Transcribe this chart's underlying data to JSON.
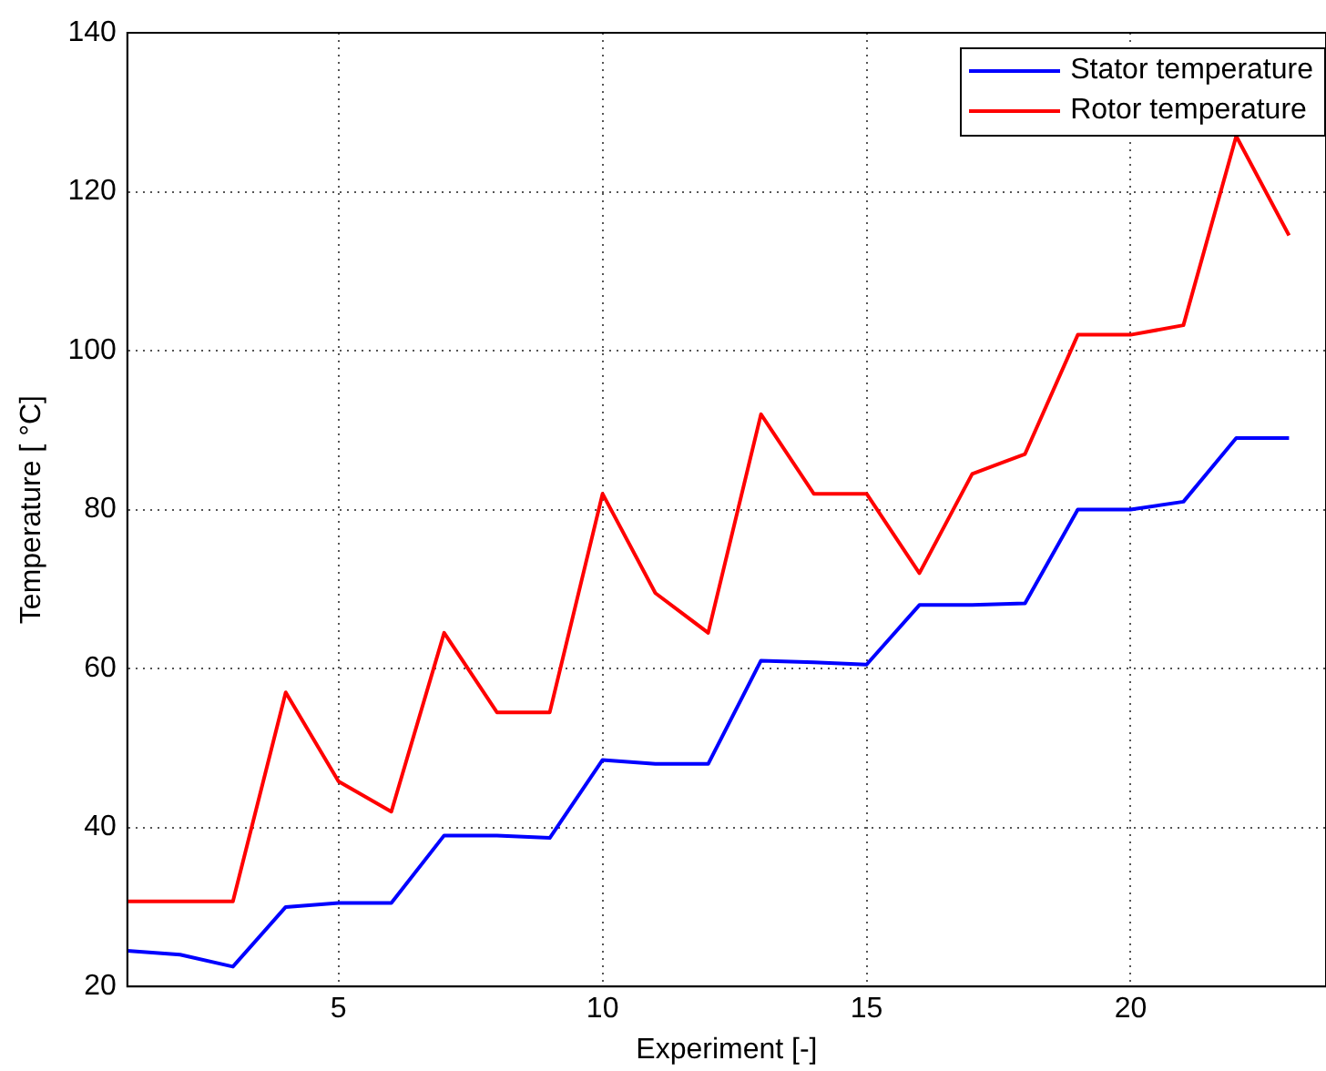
{
  "chart_data": {
    "type": "line",
    "xlabel": "Experiment [-]",
    "ylabel": "Temperature [ °C]",
    "x": [
      1,
      2,
      3,
      4,
      5,
      6,
      7,
      8,
      9,
      10,
      11,
      12,
      13,
      14,
      15,
      16,
      17,
      18,
      19,
      20,
      21,
      22,
      23
    ],
    "series": [
      {
        "name": "Stator temperature",
        "color": "#0000ff",
        "values": [
          24.5,
          24,
          22.5,
          30,
          30.5,
          30.5,
          39,
          39,
          38.7,
          48.5,
          48,
          48,
          61,
          60.8,
          60.5,
          68,
          68,
          68.2,
          80,
          80,
          81,
          89,
          89
        ]
      },
      {
        "name": "Rotor temperature",
        "color": "#ff0000",
        "values": [
          30.7,
          30.7,
          30.7,
          57,
          45.8,
          42,
          64.5,
          54.5,
          54.5,
          82,
          69.5,
          64.5,
          92,
          82,
          82,
          72,
          84.5,
          87,
          102,
          102,
          103.2,
          127,
          114.5
        ]
      }
    ],
    "xlim": [
      1,
      23.7
    ],
    "xticks": [
      5,
      10,
      15,
      20
    ],
    "ylim": [
      20,
      140
    ],
    "yticks": [
      20,
      40,
      60,
      80,
      100,
      120,
      140
    ],
    "grid": true,
    "legend": "top right",
    "marker": "none",
    "line_style": "solid"
  }
}
